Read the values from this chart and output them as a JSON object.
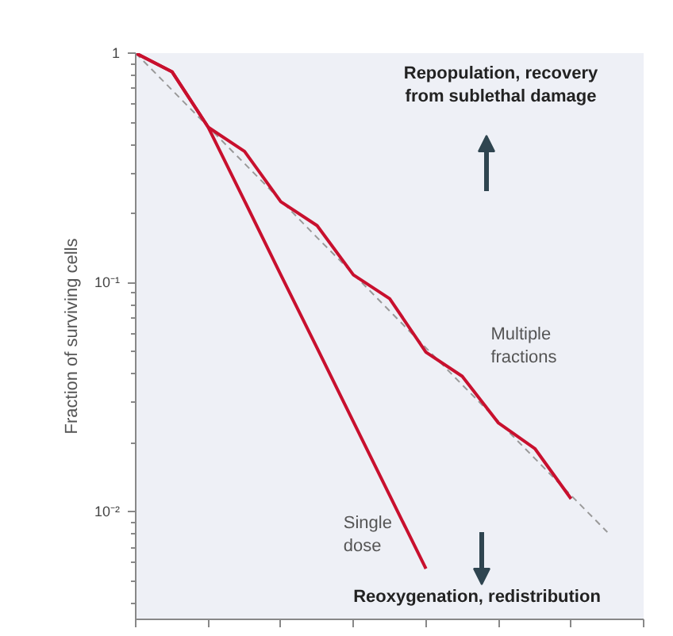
{
  "chart_data": {
    "type": "line",
    "ylabel": "Fraction of surviving cells",
    "log": "y",
    "grid": false,
    "marker": "none",
    "line_style": "solid",
    "categories": [
      null,
      null,
      null,
      null,
      null,
      null,
      null,
      null,
      null,
      null,
      null,
      null,
      null,
      null,
      null
    ],
    "ylim": [
      0.0034,
      1
    ],
    "yticks": [
      {
        "value": 1,
        "label": "1"
      },
      {
        "value": 0.1,
        "label": "10⁻¹"
      },
      {
        "value": 0.01,
        "label": "10⁻²"
      }
    ],
    "series": [
      {
        "color": "#999999",
        "line_style": "dashed",
        "values": [
          1,
          0.691,
          0.477,
          0.33,
          0.228,
          0.157,
          0.109,
          0.0751,
          0.0519,
          0.0358,
          0.0248,
          0.0171,
          0.0118,
          0.00816,
          null
        ]
      },
      {
        "name": "Single\ndose",
        "color": "#c8102e",
        "values": [
          1,
          0.83,
          0.475,
          0.227,
          0.108,
          0.0518,
          0.0247,
          0.0118,
          0.00565,
          null,
          null,
          null,
          null,
          null,
          null
        ]
      },
      {
        "name": "Multiple\nfractions",
        "color": "#c8102e",
        "values": [
          1,
          0.83,
          0.475,
          0.373,
          0.225,
          0.177,
          0.108,
          0.085,
          0.0497,
          0.039,
          0.0244,
          0.0189,
          0.0114,
          null,
          null
        ]
      }
    ],
    "annotations": [
      "Repopulation, recovery\nfrom sublethal damage",
      "Reoxygenation, redistribution"
    ]
  }
}
